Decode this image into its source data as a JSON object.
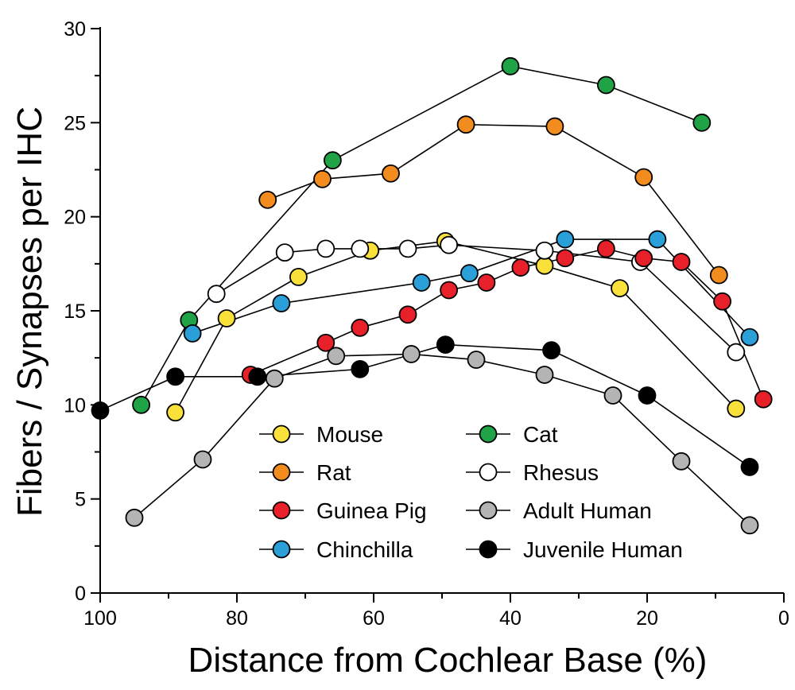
{
  "chart_data": {
    "type": "line",
    "xlabel": "Distance from Cochlear Base (%)",
    "ylabel": "Fibers / Synapses per IHC",
    "xlim": [
      100,
      0
    ],
    "ylim": [
      0,
      30
    ],
    "x_ticks": [
      100,
      80,
      60,
      40,
      20,
      0
    ],
    "y_ticks": [
      0,
      5,
      10,
      15,
      20,
      25,
      30
    ],
    "grid": false,
    "legend_position": "bottom-center",
    "series": [
      {
        "name": "Mouse",
        "color": "#F9E03B",
        "points": [
          [
            89,
            9.6
          ],
          [
            81.5,
            14.6
          ],
          [
            71,
            16.8
          ],
          [
            60.5,
            18.2
          ],
          [
            49.5,
            18.7
          ],
          [
            35,
            17.4
          ],
          [
            24,
            16.2
          ],
          [
            7,
            9.8
          ]
        ]
      },
      {
        "name": "Cat",
        "color": "#1FA346",
        "points": [
          [
            94,
            10.0
          ],
          [
            87,
            14.5
          ],
          [
            66,
            23.0
          ],
          [
            40,
            28.0
          ],
          [
            26,
            27.0
          ],
          [
            12,
            25.0
          ]
        ]
      },
      {
        "name": "Rat",
        "color": "#F28C1E",
        "points": [
          [
            75.5,
            20.9
          ],
          [
            67.5,
            22.0
          ],
          [
            57.5,
            22.3
          ],
          [
            46.5,
            24.9
          ],
          [
            33.5,
            24.8
          ],
          [
            20.5,
            22.1
          ],
          [
            9.5,
            16.9
          ]
        ]
      },
      {
        "name": "Rhesus",
        "color": "#FFFFFF",
        "points": [
          [
            83,
            15.9
          ],
          [
            73,
            18.1
          ],
          [
            67,
            18.3
          ],
          [
            62,
            18.3
          ],
          [
            55,
            18.3
          ],
          [
            49,
            18.5
          ],
          [
            35,
            18.2
          ],
          [
            21,
            17.6
          ],
          [
            7,
            12.8
          ]
        ]
      },
      {
        "name": "Guinea Pig",
        "color": "#E8202A",
        "points": [
          [
            78,
            11.6
          ],
          [
            67,
            13.3
          ],
          [
            62,
            14.1
          ],
          [
            55,
            14.8
          ],
          [
            49,
            16.1
          ],
          [
            43.5,
            16.5
          ],
          [
            38.5,
            17.3
          ],
          [
            32,
            17.8
          ],
          [
            26,
            18.3
          ],
          [
            20.5,
            17.8
          ],
          [
            15,
            17.6
          ],
          [
            9,
            15.5
          ],
          [
            3,
            10.3
          ]
        ]
      },
      {
        "name": "Adult Human",
        "color": "#B4B4B4",
        "points": [
          [
            95,
            4.0
          ],
          [
            85,
            7.1
          ],
          [
            74.5,
            11.4
          ],
          [
            65.5,
            12.6
          ],
          [
            54.5,
            12.7
          ],
          [
            45,
            12.4
          ],
          [
            35,
            11.6
          ],
          [
            25,
            10.5
          ],
          [
            15,
            7.0
          ],
          [
            5,
            3.6
          ]
        ]
      },
      {
        "name": "Chinchilla",
        "color": "#2A9FD8",
        "points": [
          [
            86.5,
            13.8
          ],
          [
            73.5,
            15.4
          ],
          [
            53,
            16.5
          ],
          [
            46,
            17.0
          ],
          [
            32,
            18.8
          ],
          [
            18.5,
            18.8
          ],
          [
            5,
            13.6
          ]
        ]
      },
      {
        "name": "Juvenile Human",
        "color": "#000000",
        "points": [
          [
            100,
            9.7
          ],
          [
            89,
            11.5
          ],
          [
            77,
            11.5
          ],
          [
            62,
            11.9
          ],
          [
            49.5,
            13.2
          ],
          [
            34,
            12.9
          ],
          [
            20,
            10.5
          ],
          [
            5,
            6.7
          ]
        ]
      }
    ],
    "legend": [
      {
        "label": "Mouse",
        "color": "#F9E03B"
      },
      {
        "label": "Cat",
        "color": "#1FA346"
      },
      {
        "label": "Rat",
        "color": "#F28C1E"
      },
      {
        "label": "Rhesus",
        "color": "#FFFFFF"
      },
      {
        "label": "Guinea Pig",
        "color": "#E8202A"
      },
      {
        "label": "Adult Human",
        "color": "#B4B4B4"
      },
      {
        "label": "Chinchilla",
        "color": "#2A9FD8"
      },
      {
        "label": "Juvenile Human",
        "color": "#000000"
      }
    ]
  }
}
